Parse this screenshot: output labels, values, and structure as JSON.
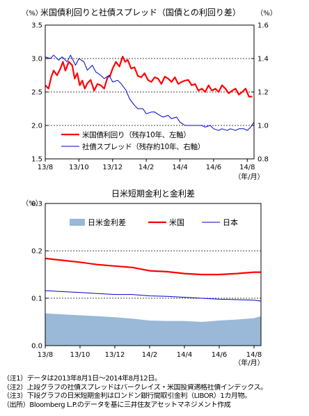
{
  "chart_data": [
    {
      "type": "line",
      "title": "米国債利回りと社債スプレッド（国債との利回り差）",
      "y_unit_left": "（%）",
      "y_unit_right": "（%）",
      "x_unit": "（年/月）",
      "x_tick_labels": [
        "13/8",
        "13/10",
        "13/12",
        "14/2",
        "14/4",
        "14/6",
        "14/8"
      ],
      "x_tick_months": [
        0,
        2,
        4,
        6,
        8,
        10,
        12
      ],
      "x_range_months": [
        0,
        12.4
      ],
      "ylim_left": [
        1.5,
        3.5
      ],
      "yticks_left": [
        "1.5",
        "2.0",
        "2.5",
        "3.0",
        "3.5"
      ],
      "ylim_right": [
        0.8,
        1.6
      ],
      "yticks_right": [
        "0.8",
        "1.0",
        "1.2",
        "1.4",
        "1.6"
      ],
      "dashed_gridlines_left": [
        2.0,
        2.5,
        3.0
      ],
      "legend_position": "bottom-left",
      "series": [
        {
          "name": "米国債利回り（残存10年、左軸）",
          "axis": "left",
          "color": "#ff0000",
          "width": 2.2,
          "x_months": [
            0,
            0.2,
            0.35,
            0.5,
            0.7,
            0.9,
            1.05,
            1.2,
            1.4,
            1.6,
            1.75,
            1.9,
            2.05,
            2.2,
            2.35,
            2.5,
            2.7,
            2.9,
            3.1,
            3.3,
            3.5,
            3.7,
            3.85,
            4.0,
            4.2,
            4.4,
            4.6,
            4.75,
            4.9,
            5.1,
            5.3,
            5.5,
            5.7,
            5.9,
            6.1,
            6.3,
            6.5,
            6.7,
            6.9,
            7.1,
            7.3,
            7.5,
            7.7,
            7.9,
            8.1,
            8.3,
            8.5,
            8.7,
            8.9,
            9.1,
            9.3,
            9.5,
            9.7,
            9.9,
            10.1,
            10.3,
            10.5,
            10.7,
            10.9,
            11.1,
            11.3,
            11.5,
            11.7,
            11.9,
            12.1,
            12.3
          ],
          "values": [
            2.6,
            2.55,
            2.72,
            2.82,
            2.75,
            2.85,
            2.95,
            2.82,
            2.95,
            2.9,
            2.7,
            2.78,
            2.6,
            2.67,
            2.55,
            2.63,
            2.68,
            2.52,
            2.62,
            2.6,
            2.55,
            2.72,
            2.74,
            2.85,
            2.95,
            2.88,
            3.03,
            2.95,
            2.98,
            2.85,
            2.87,
            2.74,
            2.72,
            2.78,
            2.68,
            2.65,
            2.72,
            2.7,
            2.62,
            2.73,
            2.7,
            2.65,
            2.72,
            2.62,
            2.65,
            2.67,
            2.68,
            2.6,
            2.62,
            2.52,
            2.55,
            2.5,
            2.6,
            2.52,
            2.55,
            2.5,
            2.6,
            2.55,
            2.48,
            2.52,
            2.55,
            2.46,
            2.5,
            2.55,
            2.43,
            2.43
          ]
        },
        {
          "name": "社債スプレッド（残存約10年、右軸）",
          "axis": "right",
          "color": "#0000c8",
          "width": 1.0,
          "x_months": [
            0,
            0.3,
            0.5,
            0.8,
            1.0,
            1.3,
            1.5,
            1.8,
            2.0,
            2.3,
            2.5,
            2.8,
            3.0,
            3.3,
            3.5,
            3.8,
            4.0,
            4.3,
            4.5,
            4.8,
            5.0,
            5.3,
            5.5,
            5.8,
            6.0,
            6.3,
            6.5,
            6.8,
            7.0,
            7.3,
            7.5,
            7.8,
            8.0,
            8.3,
            8.5,
            8.8,
            9.0,
            9.3,
            9.5,
            9.8,
            10.0,
            10.3,
            10.5,
            10.8,
            11.0,
            11.3,
            11.5,
            11.8,
            12.0,
            12.2,
            12.4
          ],
          "values": [
            1.41,
            1.4,
            1.42,
            1.39,
            1.41,
            1.38,
            1.42,
            1.36,
            1.4,
            1.38,
            1.33,
            1.36,
            1.32,
            1.3,
            1.28,
            1.3,
            1.26,
            1.27,
            1.25,
            1.21,
            1.16,
            1.12,
            1.1,
            1.1,
            1.07,
            1.08,
            1.08,
            1.06,
            1.05,
            1.06,
            1.04,
            1.05,
            1.02,
            1.0,
            1.0,
            1.0,
            1.0,
            1.0,
            0.99,
            1.0,
            0.98,
            0.97,
            0.98,
            0.97,
            0.98,
            0.97,
            0.98,
            0.98,
            0.97,
            0.99,
            1.02
          ]
        }
      ]
    },
    {
      "type": "line",
      "title": "日米短期金利と金利差",
      "y_unit_left": "（%）",
      "x_unit": "（年/月）",
      "x_tick_labels": [
        "13/8",
        "13/10",
        "13/12",
        "14/2",
        "14/4",
        "14/6",
        "14/8"
      ],
      "x_tick_months": [
        0,
        2,
        4,
        6,
        8,
        10,
        12
      ],
      "x_range_months": [
        0,
        12.4
      ],
      "ylim_left": [
        0.0,
        0.3
      ],
      "yticks_left": [
        "0.0",
        "0.1",
        "0.2",
        "0.3"
      ],
      "dashed_gridlines_left": [
        0.1,
        0.2
      ],
      "legend_position": "top",
      "series": [
        {
          "name": "日米金利差",
          "kind": "area",
          "color": "#9ab8d8",
          "x_months": [
            0,
            1,
            2,
            3,
            4,
            5,
            6,
            7,
            8,
            9,
            10,
            11,
            12,
            12.4
          ],
          "values": [
            0.068,
            0.066,
            0.064,
            0.062,
            0.06,
            0.057,
            0.053,
            0.052,
            0.052,
            0.05,
            0.053,
            0.055,
            0.058,
            0.062
          ]
        },
        {
          "name": "米国",
          "kind": "line",
          "color": "#ff0000",
          "width": 2.2,
          "x_months": [
            0,
            1,
            2,
            3,
            4,
            5,
            6,
            7,
            8,
            9,
            10,
            11,
            12,
            12.4
          ],
          "values": [
            0.184,
            0.18,
            0.176,
            0.171,
            0.168,
            0.165,
            0.158,
            0.156,
            0.152,
            0.15,
            0.15,
            0.152,
            0.155,
            0.155
          ]
        },
        {
          "name": "日本",
          "kind": "line",
          "color": "#0000c8",
          "width": 1.0,
          "x_months": [
            0,
            1,
            2,
            3,
            4,
            5,
            6,
            7,
            8,
            9,
            10,
            11,
            12,
            12.4
          ],
          "values": [
            0.116,
            0.114,
            0.112,
            0.11,
            0.108,
            0.108,
            0.105,
            0.104,
            0.102,
            0.1,
            0.098,
            0.097,
            0.096,
            0.094
          ]
        }
      ]
    }
  ],
  "notes": [
    "（注1）データは2013年8月1日～2014年8月12日。",
    "（注2）上段グラフの社債スプレッドはバークレイズ・米国投資適格社債インデックス。",
    "（注3）下段グラフの日米短期金利はロンドン銀行間取引金利（LIBOR）1カ月物。",
    "（出所）Bloomberg L.P.のデータを基に三井住友アセットマネジメント作成"
  ]
}
